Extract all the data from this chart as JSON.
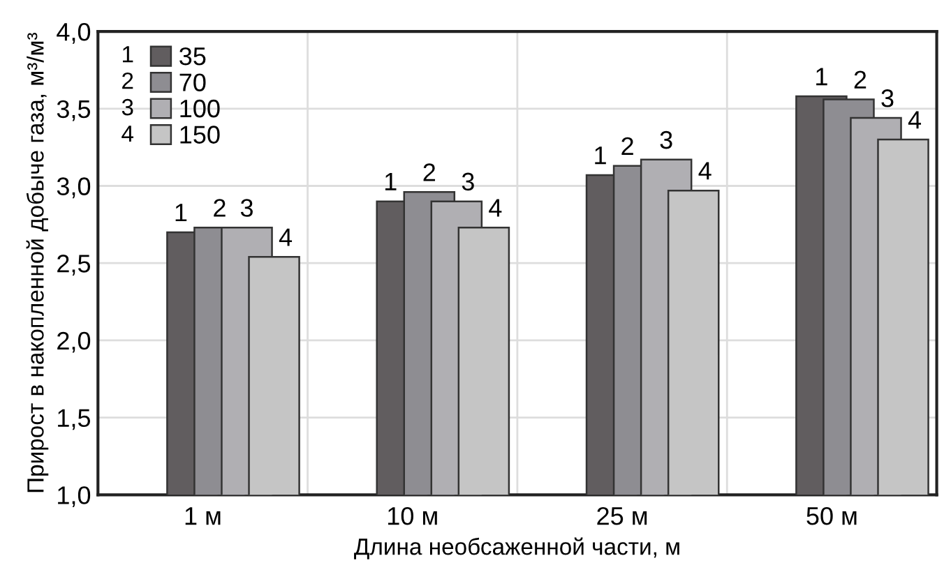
{
  "chart_data": {
    "type": "bar",
    "categories": [
      "1 м",
      "10 м",
      "25 м",
      "50 м"
    ],
    "xlabel": "Длина необсаженной части, м",
    "ylabel": "Прирост в накопленной добыче газа, м³/м³",
    "series": [
      {
        "name": "35",
        "color": "#615d5f",
        "values": [
          2.7,
          2.9,
          3.07,
          3.58
        ]
      },
      {
        "name": "70",
        "color": "#8e8d92",
        "values": [
          2.73,
          2.96,
          3.13,
          3.56
        ]
      },
      {
        "name": "100",
        "color": "#b0afb3",
        "values": [
          2.73,
          2.9,
          3.17,
          3.44
        ]
      },
      {
        "name": "150",
        "color": "#c5c5c5",
        "values": [
          2.54,
          2.73,
          2.97,
          3.3
        ]
      }
    ],
    "annotations": [
      "1",
      "2",
      "3",
      "4",
      "1",
      "2",
      "3",
      "4",
      "1",
      "2",
      "3",
      "4",
      "1",
      "2",
      "3",
      "4",
      "1",
      "2",
      "3",
      "4"
    ],
    "ylim": [
      1.0,
      4.0
    ],
    "yticks": [
      {
        "value": 1.0,
        "label": "1,0"
      },
      {
        "value": 1.5,
        "label": "1,5"
      },
      {
        "value": 2.0,
        "label": "2,0"
      },
      {
        "value": 2.5,
        "label": "2,5"
      },
      {
        "value": 3.0,
        "label": "3,0"
      },
      {
        "value": 3.5,
        "label": "3,5"
      },
      {
        "value": 4.0,
        "label": "4,0"
      }
    ],
    "grid": true,
    "legend": "top left"
  }
}
